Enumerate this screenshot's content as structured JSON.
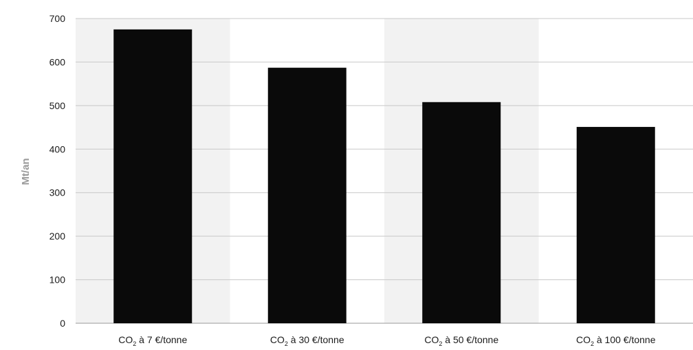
{
  "chart_data": {
    "type": "bar",
    "title": "",
    "xlabel": "",
    "ylabel": "Mt/an",
    "ylim": [
      0,
      700
    ],
    "yticks": [
      0,
      100,
      200,
      300,
      400,
      500,
      600,
      700
    ],
    "grid": true,
    "alternating_band_color": "#f2f2f2",
    "bar_color": "#0a0a0a",
    "categories": [
      {
        "prefix": "CO",
        "subscript": "2",
        "suffix": " à 7 €/tonne"
      },
      {
        "prefix": "CO",
        "subscript": "2",
        "suffix": " à 30 €/tonne"
      },
      {
        "prefix": "CO",
        "subscript": "2",
        "suffix": " à 50 €/tonne"
      },
      {
        "prefix": "CO",
        "subscript": "2",
        "suffix": " à 100 €/tonne"
      }
    ],
    "values": [
      675,
      587,
      508,
      451
    ]
  }
}
